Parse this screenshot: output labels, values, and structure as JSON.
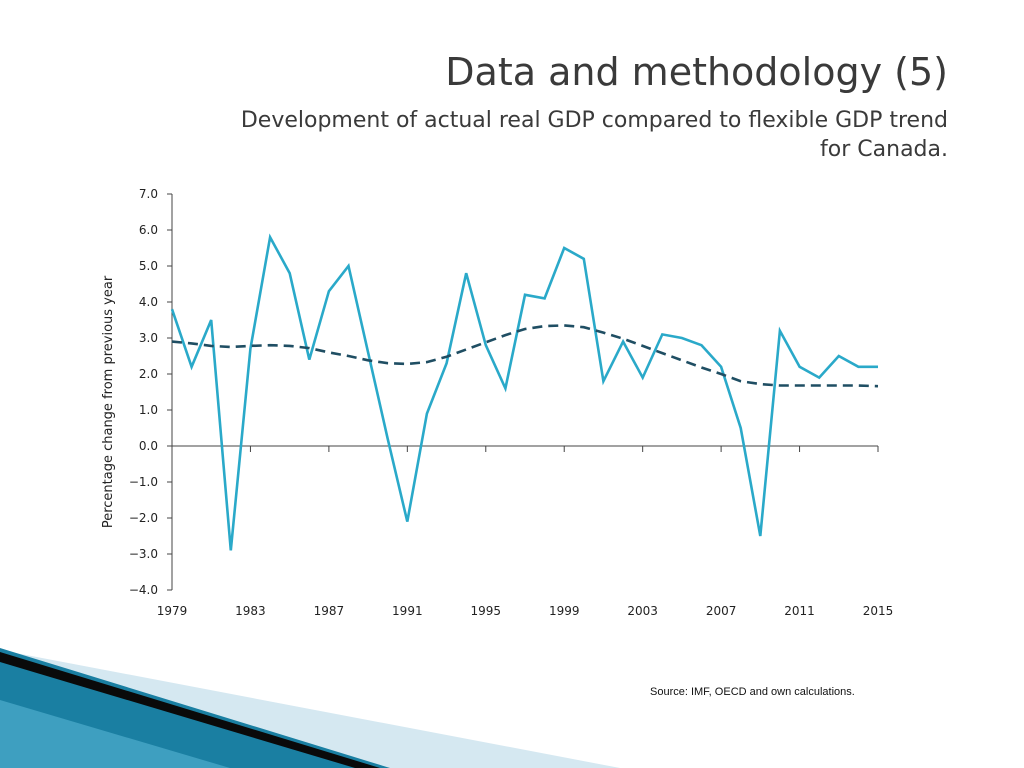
{
  "slide": {
    "title": "Data and methodology (5)",
    "subtitle_line1": "Development of actual real GDP compared to flexible GDP trend",
    "subtitle_line2": "for Canada.",
    "source": "Source: IMF, OECD and own calculations."
  },
  "colors": {
    "actual": "#2aa9c9",
    "trend": "#1f4e63",
    "decor_dark": "#0a0a0a",
    "decor_teal": "#1a7fa2",
    "decor_light": "#d5e8f1"
  },
  "chart_data": {
    "type": "line",
    "title": "",
    "xlabel": "",
    "ylabel": "Percentage change from previous year",
    "ylim": [
      -4.0,
      7.0
    ],
    "yticks": [
      "7.0",
      "6.0",
      "5.0",
      "4.0",
      "3.0",
      "2.0",
      "1.0",
      "0.0",
      "−1.0",
      "−2.0",
      "−3.0",
      "−4.0"
    ],
    "xlim": [
      1979,
      2015
    ],
    "xticks": [
      "1979",
      "1983",
      "1987",
      "1991",
      "1995",
      "1999",
      "2003",
      "2007",
      "2011",
      "2015"
    ],
    "grid": false,
    "legend": "none",
    "x": [
      1979,
      1980,
      1981,
      1982,
      1983,
      1984,
      1985,
      1986,
      1987,
      1988,
      1989,
      1990,
      1991,
      1992,
      1993,
      1994,
      1995,
      1996,
      1997,
      1998,
      1999,
      2000,
      2001,
      2002,
      2003,
      2004,
      2005,
      2006,
      2007,
      2008,
      2009,
      2010,
      2011,
      2012,
      2013,
      2014,
      2015
    ],
    "series": [
      {
        "style": "solid",
        "values": [
          3.8,
          2.2,
          3.5,
          -2.9,
          2.7,
          5.8,
          4.8,
          2.4,
          4.3,
          5.0,
          2.6,
          0.2,
          -2.1,
          0.9,
          2.3,
          4.8,
          2.8,
          1.6,
          4.2,
          4.1,
          5.5,
          5.2,
          1.8,
          2.9,
          1.9,
          3.1,
          3.0,
          2.8,
          2.2,
          0.5,
          -2.5,
          3.2,
          2.2,
          1.9,
          2.5,
          2.2,
          2.2
        ]
      },
      {
        "style": "dashed",
        "values": [
          2.9,
          2.85,
          2.78,
          2.75,
          2.78,
          2.8,
          2.78,
          2.72,
          2.6,
          2.5,
          2.38,
          2.3,
          2.28,
          2.33,
          2.48,
          2.68,
          2.88,
          3.08,
          3.25,
          3.33,
          3.35,
          3.3,
          3.15,
          2.98,
          2.78,
          2.58,
          2.38,
          2.18,
          2.0,
          1.8,
          1.72,
          1.68,
          1.68,
          1.68,
          1.68,
          1.68,
          1.66
        ]
      }
    ]
  }
}
